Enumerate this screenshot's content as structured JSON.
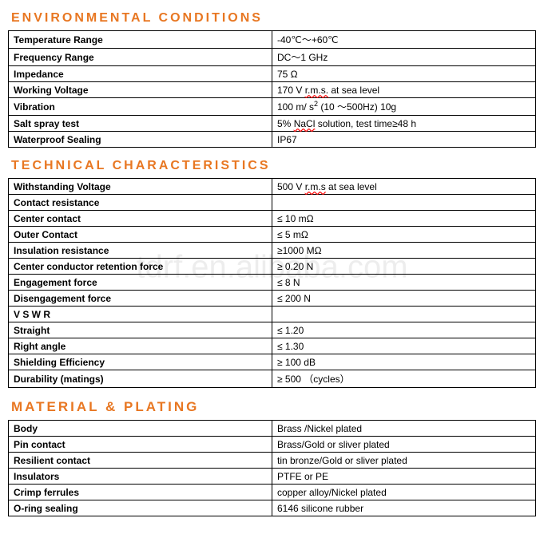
{
  "watermark": "tdrf.en.alibaba.com",
  "sections": {
    "env": {
      "title": "ENVIRONMENTAL   CONDITIONS",
      "title_fontsize": "16px",
      "rows": [
        {
          "label": "Temperature Range",
          "value": "-40℃～+60℃"
        },
        {
          "label": "Frequency Range",
          "value": "DC～1 GHz"
        },
        {
          "label": "Impedance",
          "value": "75 Ω"
        },
        {
          "label": "Working Voltage",
          "value": "170 V   <span class='squiggle'>r.m.s.</span> at sea level"
        },
        {
          "label": "Vibration",
          "value": "100 m/ s<sup>2</sup>   (10 ～500Hz)   10g"
        },
        {
          "label": "Salt spray test",
          "value": "5% <span class='squiggle'>NaCl</span> solution, test time≥48 h"
        },
        {
          "label": "Waterproof Sealing",
          "value": "IP67"
        }
      ]
    },
    "tech": {
      "title": "TECHNICAL   CHARACTERISTICS",
      "title_fontsize": "16px",
      "rows": [
        {
          "label": "Withstanding Voltage",
          "value": "500 V   <span class='squiggle'>r.m.s</span>   at sea level"
        },
        {
          "label": "Contact resistance",
          "value": ""
        },
        {
          "label": "Center contact",
          "value": "≤ 10 mΩ"
        },
        {
          "label": "Outer Contact",
          "value": "≤   5 mΩ"
        },
        {
          "label": "Insulation resistance",
          "value": "≥1000 MΩ"
        },
        {
          "label": "Center conductor retention force",
          "value": "≥ 0.20 N"
        },
        {
          "label": "Engagement force",
          "value": "≤ 8 N"
        },
        {
          "label": "Disengagement force",
          "value": "≤ 200 N"
        },
        {
          "label": "V S W R",
          "value": ""
        },
        {
          "label": "Straight",
          "value": "≤ 1.20"
        },
        {
          "label": "Right angle",
          "value": "≤ 1.30"
        },
        {
          "label": "Shielding Efficiency",
          "value": "≥ 100 dB"
        },
        {
          "label": "Durability (matings)",
          "value": "≥ 500 （cycles）"
        }
      ]
    },
    "mat": {
      "title": "MATERIAL  &amp;  PLATING",
      "title_fontsize": "17px",
      "rows": [
        {
          "label": "Body",
          "value": "Brass /Nickel plated"
        },
        {
          "label": "Pin contact",
          "value": "Brass/Gold or sliver plated"
        },
        {
          "label": "Resilient contact",
          "value": "tin bronze/Gold or sliver plated"
        },
        {
          "label": "Insulators",
          "value": "PTFE or PE"
        },
        {
          "label": "Crimp ferrules",
          "value": "copper alloy/Nickel plated"
        },
        {
          "label": "O-ring sealing",
          "value": "6146 silicone rubber"
        }
      ]
    }
  },
  "colors": {
    "heading": "#e87722",
    "border": "#000000",
    "text": "#000000",
    "background": "#ffffff"
  }
}
